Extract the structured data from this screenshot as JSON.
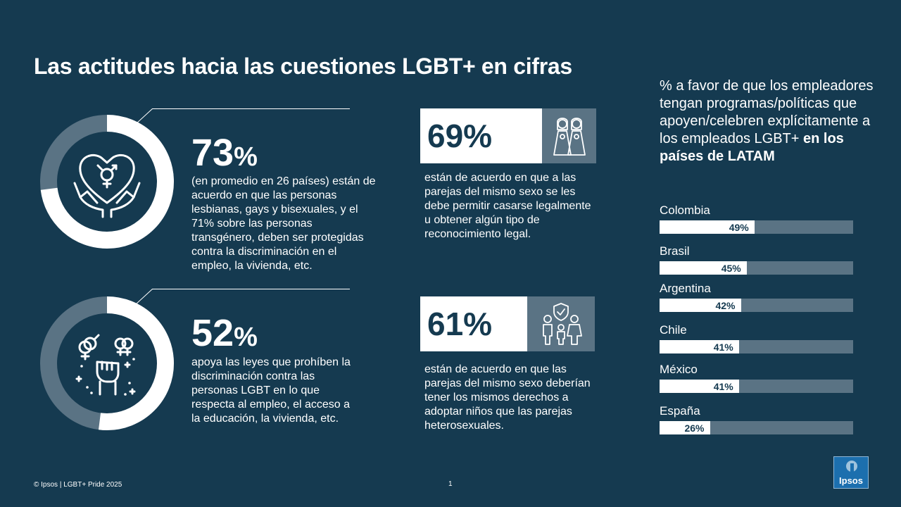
{
  "title": "Las actitudes hacia las cuestiones LGBT+ en cifras",
  "stats": [
    {
      "value": "73",
      "unit": "%",
      "fraction": 0.73,
      "text": "(en promedio en 26 países) están de acuerdo en que las personas lesbianas, gays y bisexuales, y el 71% sobre las personas transgénero, deben ser protegidas contra la discriminación en el empleo, la vivienda, etc.",
      "icon": "heart-hands-gender-icon"
    },
    {
      "value": "52",
      "unit": "%",
      "fraction": 0.52,
      "text": "apoya las leyes que prohíben la discriminación contra las personas LGBT en lo que respecta al empleo, el acceso a la educación, la vivienda, etc.",
      "icon": "raised-fist-gender-icon"
    },
    {
      "value": "69%",
      "text": "están de acuerdo en que a las parejas del mismo sexo se les debe permitir casarse legalmente u obtener algún tipo de reconocimiento legal.",
      "icon": "wedding-couple-icon"
    },
    {
      "value": "61%",
      "text": "están de acuerdo en que las parejas del mismo sexo deberían tener los mismos derechos a adoptar niños que las parejas heterosexuales.",
      "icon": "family-shield-icon"
    }
  ],
  "side_title": {
    "part1": "% a favor de que los empleadores tengan programas/políticas que apoyen/celebren explícitamente a los empleados LGBT+ ",
    "part2": "en los países de LATAM"
  },
  "chart_data": {
    "type": "bar",
    "orientation": "horizontal",
    "categories": [
      "Colombia",
      "Brasil",
      "Argentina",
      "Chile",
      "México",
      "España"
    ],
    "values": [
      49,
      45,
      42,
      41,
      41,
      26
    ],
    "labels": [
      "49%",
      "45%",
      "42%",
      "41%",
      "41%",
      "26%"
    ],
    "xlim": [
      0,
      100
    ],
    "colors": {
      "fill": "#ffffff",
      "track": "#5a7384"
    }
  },
  "footer": "© Ipsos | LGBT+ Pride 2025",
  "page_number": "1",
  "logo": {
    "text": "Ipsos"
  },
  "colors": {
    "background": "#153a50",
    "accent": "#5a7384",
    "text": "#ffffff"
  }
}
